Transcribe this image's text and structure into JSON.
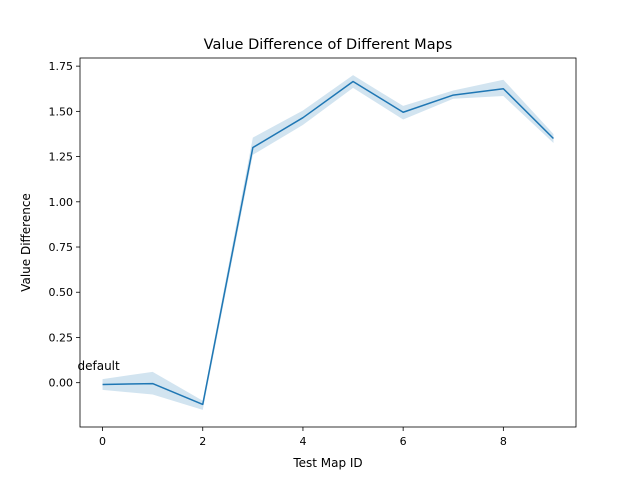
{
  "chart_data": {
    "type": "line",
    "title": "Value Difference of Different Maps",
    "xlabel": "Test Map ID",
    "ylabel": "Value Difference",
    "xlim": [
      -0.45,
      9.45
    ],
    "ylim": [
      -0.245,
      1.795
    ],
    "x_ticks": [
      0,
      2,
      4,
      6,
      8
    ],
    "y_ticks": [
      0.0,
      0.25,
      0.5,
      0.75,
      1.0,
      1.25,
      1.5,
      1.75
    ],
    "x_tick_labels": [
      "0",
      "2",
      "4",
      "6",
      "8"
    ],
    "y_tick_labels": [
      "0.00",
      "0.25",
      "0.50",
      "0.75",
      "1.00",
      "1.25",
      "1.50",
      "1.75"
    ],
    "grid": false,
    "series": [
      {
        "x": [
          0,
          1,
          2,
          3,
          4,
          5,
          6,
          7,
          8,
          9
        ],
        "values": [
          -0.01,
          -0.005,
          -0.12,
          1.3,
          1.465,
          1.665,
          1.495,
          1.59,
          1.625,
          1.35
        ],
        "band_lower": [
          -0.04,
          -0.065,
          -0.15,
          1.26,
          1.425,
          1.63,
          1.455,
          1.57,
          1.585,
          1.325
        ],
        "band_upper": [
          0.02,
          0.06,
          -0.1,
          1.355,
          1.505,
          1.7,
          1.53,
          1.615,
          1.675,
          1.375
        ],
        "color": "#1f77b4",
        "band_color": "#1f77b4"
      }
    ],
    "annotations": [
      {
        "text": "default",
        "x": -0.5,
        "y": 0.07
      }
    ]
  }
}
